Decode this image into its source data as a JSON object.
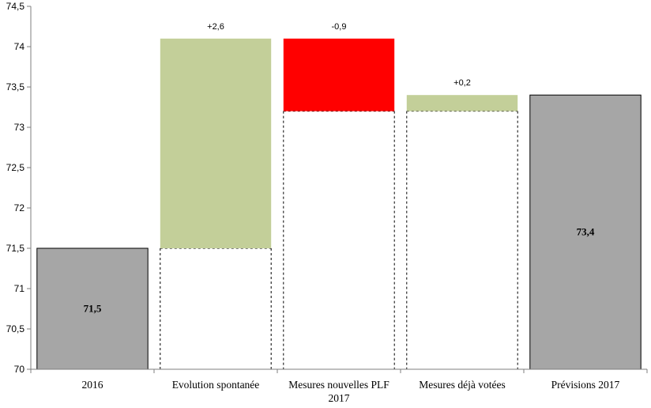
{
  "chart_data": {
    "type": "waterfall",
    "categories": [
      [
        "2016"
      ],
      [
        "Evolution spontanée"
      ],
      [
        "Mesures nouvelles PLF",
        "2017"
      ],
      [
        "Mesures déjà votées"
      ],
      [
        "Prévisions 2017"
      ]
    ],
    "bars": [
      {
        "kind": "total",
        "base": 70,
        "top": 71.5,
        "label": "71,5"
      },
      {
        "kind": "increase",
        "base": 71.5,
        "top": 74.1,
        "label": "+2,6"
      },
      {
        "kind": "decrease",
        "base": 73.2,
        "top": 74.1,
        "label": "-0,9"
      },
      {
        "kind": "increase",
        "base": 73.2,
        "top": 73.4,
        "label": "+0,2"
      },
      {
        "kind": "total",
        "base": 70,
        "top": 73.4,
        "label": "73,4"
      }
    ],
    "y_ticks": [
      "70",
      "70,5",
      "71",
      "71,5",
      "72",
      "72,5",
      "73",
      "73,5",
      "74",
      "74,5"
    ],
    "ylim": [
      70,
      74.5
    ],
    "colors": {
      "total": "#a6a6a6",
      "increase": "#c3cf99",
      "decrease": "#ff0000",
      "axis": "#7f7f7f"
    },
    "title": "",
    "xlabel": "",
    "ylabel": "",
    "legend": false,
    "grid": false
  }
}
